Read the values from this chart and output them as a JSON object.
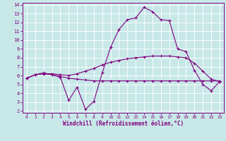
{
  "title": "",
  "xlabel": "Windchill (Refroidissement éolien,°C)",
  "ylabel": "",
  "xlim": [
    -0.5,
    23.5
  ],
  "ylim": [
    1.8,
    14.2
  ],
  "yticks": [
    2,
    3,
    4,
    5,
    6,
    7,
    8,
    9,
    10,
    11,
    12,
    13,
    14
  ],
  "xticks": [
    0,
    1,
    2,
    3,
    4,
    5,
    6,
    7,
    8,
    9,
    10,
    11,
    12,
    13,
    14,
    15,
    16,
    17,
    18,
    19,
    20,
    21,
    22,
    23
  ],
  "bg_color": "#c8e8e8",
  "line_color": "#800080",
  "grid_color": "#ffffff",
  "series": [
    {
      "x": [
        0,
        1,
        2,
        3,
        4,
        5,
        6,
        7,
        8,
        9,
        10,
        11,
        12,
        13,
        14,
        15,
        16,
        17,
        18,
        19,
        20,
        21,
        22,
        23
      ],
      "y": [
        5.7,
        6.1,
        6.2,
        6.1,
        5.9,
        5.7,
        5.6,
        5.5,
        5.4,
        5.4,
        5.4,
        5.4,
        5.4,
        5.4,
        5.4,
        5.4,
        5.4,
        5.4,
        5.4,
        5.4,
        5.4,
        5.4,
        5.4,
        5.4
      ]
    },
    {
      "x": [
        0,
        1,
        2,
        3,
        4,
        5,
        6,
        7,
        8,
        9,
        10,
        11,
        12,
        13,
        14,
        15,
        16,
        17,
        18,
        19,
        20,
        21,
        22,
        23
      ],
      "y": [
        5.7,
        6.1,
        6.2,
        6.2,
        6.1,
        6.0,
        6.2,
        6.5,
        6.8,
        7.2,
        7.5,
        7.7,
        7.9,
        8.0,
        8.1,
        8.2,
        8.2,
        8.2,
        8.1,
        8.0,
        7.4,
        6.5,
        5.6,
        5.3
      ]
    },
    {
      "x": [
        0,
        1,
        2,
        3,
        4,
        5,
        6,
        7,
        8,
        9,
        10,
        11,
        12,
        13,
        14,
        15,
        16,
        17,
        18,
        19,
        20,
        21,
        22,
        23
      ],
      "y": [
        5.7,
        6.1,
        6.3,
        6.1,
        5.8,
        3.2,
        4.7,
        2.2,
        3.1,
        6.3,
        9.2,
        11.2,
        12.3,
        12.5,
        13.7,
        13.2,
        12.3,
        12.2,
        9.0,
        8.7,
        6.6,
        5.0,
        4.3,
        5.3
      ]
    }
  ]
}
